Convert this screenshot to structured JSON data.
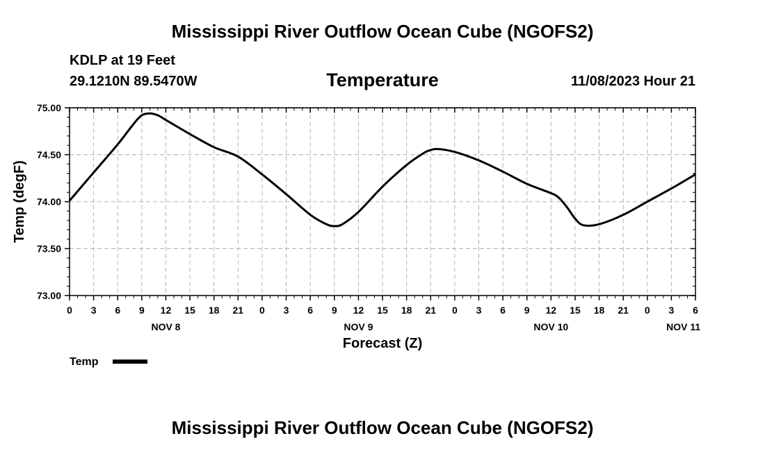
{
  "page": {
    "title": "Mississippi River Outflow Ocean Cube (NGOFS2)",
    "footer_title": "Mississippi River Outflow Ocean Cube (NGOFS2)",
    "station": "KDLP at 19 Feet",
    "location": "29.1210N  89.5470W",
    "variable": "Temperature",
    "datetime": "11/08/2023 Hour 21"
  },
  "chart_data": {
    "type": "line",
    "title": "Temperature",
    "xlabel": "Forecast (Z)",
    "ylabel": "Temp (degF)",
    "ylim": [
      73.0,
      75.0
    ],
    "xlim_hours": [
      0,
      78
    ],
    "yticks": [
      "73.00",
      "73.50",
      "74.00",
      "74.50",
      "75.00"
    ],
    "ytick_values": [
      73.0,
      73.5,
      74.0,
      74.5,
      75.0
    ],
    "xtick_labels": [
      "0",
      "3",
      "6",
      "9",
      "12",
      "15",
      "18",
      "21",
      "0",
      "3",
      "6",
      "9",
      "12",
      "15",
      "18",
      "21",
      "0",
      "3",
      "6",
      "9",
      "12",
      "15",
      "18",
      "21",
      "0",
      "3",
      "6"
    ],
    "day_labels": [
      {
        "label": "NOV 8",
        "hour": 12
      },
      {
        "label": "NOV 9",
        "hour": 36
      },
      {
        "label": "NOV 10",
        "hour": 60
      },
      {
        "label": "NOV 11",
        "hour": 76.5
      }
    ],
    "grid": true,
    "legend": {
      "position": "bottom-left",
      "entries": [
        "Temp"
      ]
    },
    "series": [
      {
        "name": "Temp",
        "x": [
          0,
          3,
          6,
          8,
          9,
          10,
          11,
          12,
          15,
          18,
          21,
          24,
          27,
          30,
          32,
          33,
          34,
          36,
          39,
          42,
          44,
          45,
          46,
          48,
          51,
          54,
          57,
          60,
          61,
          62,
          63,
          64,
          66,
          69,
          72,
          75,
          78
        ],
        "values": [
          74.01,
          74.31,
          74.61,
          74.83,
          74.92,
          74.94,
          74.92,
          74.87,
          74.72,
          74.58,
          74.48,
          74.29,
          74.08,
          73.86,
          73.76,
          73.74,
          73.76,
          73.89,
          74.16,
          74.39,
          74.51,
          74.55,
          74.56,
          74.53,
          74.44,
          74.32,
          74.19,
          74.09,
          74.04,
          73.94,
          73.82,
          73.75,
          73.76,
          73.86,
          74.0,
          74.14,
          74.29
        ]
      }
    ]
  }
}
